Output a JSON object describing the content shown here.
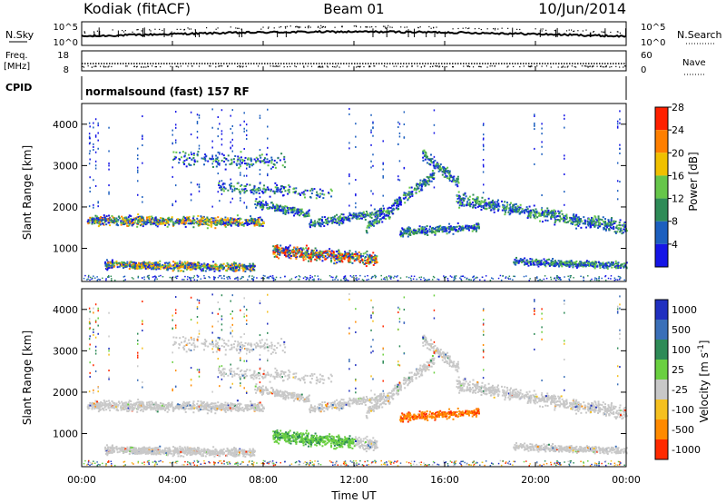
{
  "header": {
    "station": "Kodiak (fitACF)",
    "beam": "Beam 01",
    "date": "10/Jun/2014",
    "mode": "normalsound (fast) 157 RF"
  },
  "top_panels": {
    "nsky_label": "N.Sky",
    "nsky_ticks": [
      "10^5",
      "10^0"
    ],
    "nsearch_label": "N.Search",
    "nsearch_ticks": [
      "10^5",
      "10^0"
    ],
    "freq_label": "Freq.",
    "freq_unit": "[MHz]",
    "freq_ticks": [
      "18",
      "8"
    ],
    "nave_label": "Nave",
    "nave_ticks": [
      "60",
      "0"
    ],
    "cpid_label": "CPID"
  },
  "chart_data": [
    {
      "type": "heatmap",
      "name": "power-panel",
      "ylabel": "Slant Range [km]",
      "yticks": [
        "1000",
        "2000",
        "3000",
        "4000"
      ],
      "ylim": [
        200,
        4500
      ],
      "xlim": [
        0,
        24
      ],
      "colorbar_label": "Power [dB]",
      "colorbar_ticks": [
        "4",
        "8",
        "12",
        "16",
        "20",
        "24",
        "28"
      ],
      "colorbar_colors": [
        "#1515e6",
        "#1c5fbf",
        "#2e8b57",
        "#66c64a",
        "#f0c000",
        "#ff7f00",
        "#ff2000"
      ]
    },
    {
      "type": "heatmap",
      "name": "velocity-panel",
      "ylabel": "Slant Range [km]",
      "yticks": [
        "1000",
        "2000",
        "3000",
        "4000"
      ],
      "ylim": [
        200,
        4500
      ],
      "xlim": [
        0,
        24
      ],
      "colorbar_label": "Velocity [m s^-1]",
      "colorbar_ticks": [
        "1000",
        "500",
        "100",
        "25",
        "-25",
        "-100",
        "-500",
        "-1000"
      ],
      "colorbar_colors": [
        "#2030c0",
        "#3a6fb8",
        "#2e8b57",
        "#6ad040",
        "#c8c8c8",
        "#f5c020",
        "#ff8a00",
        "#ff2a00"
      ]
    }
  ],
  "xaxis": {
    "ticks": [
      "00:00",
      "04:00",
      "08:00",
      "12:00",
      "16:00",
      "20:00",
      "00:00"
    ],
    "label": "Time UT"
  }
}
